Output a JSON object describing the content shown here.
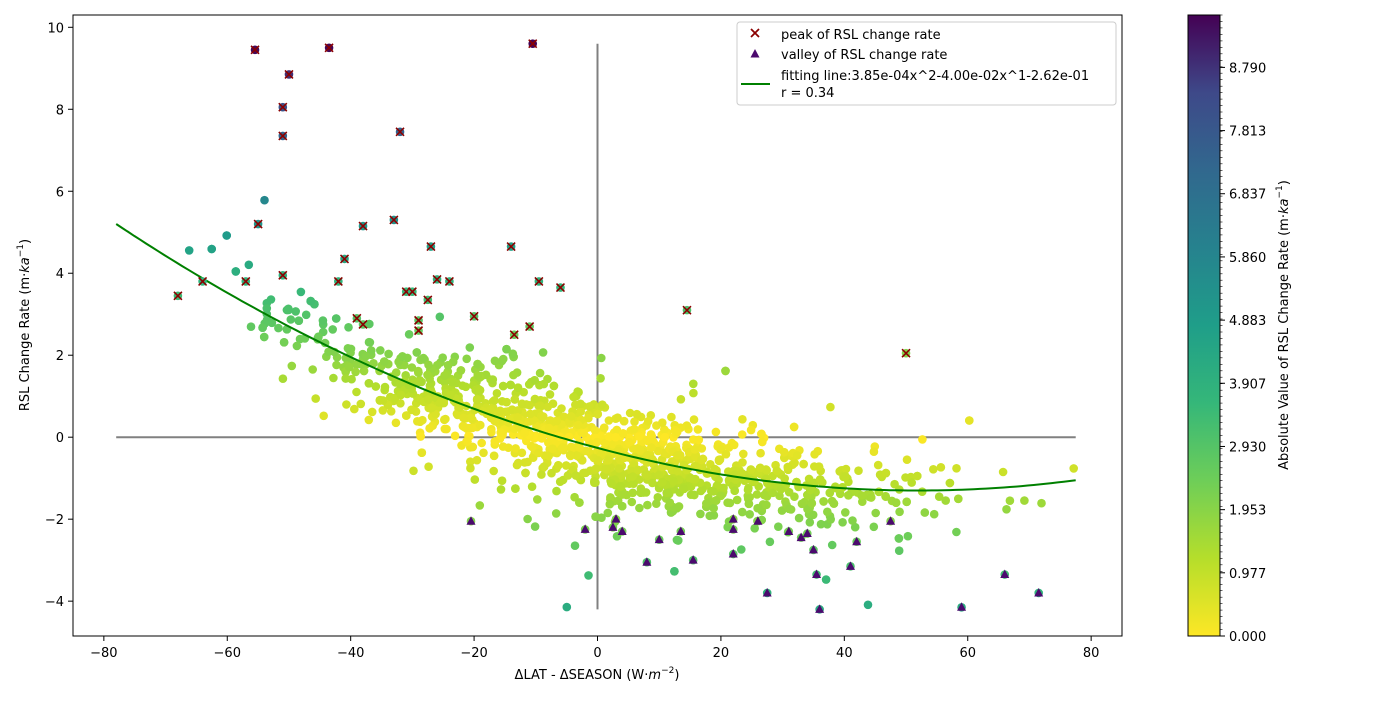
{
  "chart_data": {
    "type": "scatter",
    "title": "",
    "xlabel": "ΔLAT - ΔSEASON  (W·m⁻²)",
    "xlabel_main": "ΔLAT - ΔSEASON  (W·",
    "xlabel_unit": "m",
    "xlabel_exp": "−2",
    "xlabel_close": ")",
    "ylabel_main": "RSL Change Rate (m·",
    "ylabel_unit": "ka",
    "ylabel_exp": "−1",
    "ylabel_close": ")",
    "xlim": [
      -85,
      85
    ],
    "ylim": [
      -4.85,
      10.3
    ],
    "xticks": [
      -80,
      -60,
      -40,
      -20,
      0,
      20,
      40,
      60,
      80
    ],
    "xtick_labels": [
      "−80",
      "−60",
      "−40",
      "−20",
      "0",
      "20",
      "40",
      "60",
      "80"
    ],
    "yticks": [
      -4,
      -2,
      0,
      2,
      4,
      6,
      8,
      10
    ],
    "ytick_labels": [
      "−4",
      "−2",
      "0",
      "2",
      "4",
      "6",
      "8",
      "10"
    ],
    "grid": false,
    "legend_position": "top-right",
    "reference_lines": {
      "horizontal": {
        "y": 0,
        "x_range": [
          -78,
          77.5
        ],
        "color": "#808080"
      },
      "vertical": {
        "x": 0,
        "y_range": [
          -4.2,
          9.6
        ],
        "color": "#808080"
      }
    },
    "fit": {
      "label": "fitting line:3.85e-04x^2-4.00e-02x^1-2.62e-01",
      "r_label": "r = 0.34",
      "coefficients": [
        0.000385,
        -0.04,
        -0.262
      ],
      "x_range": [
        -78,
        77.5
      ],
      "color": "#008000"
    },
    "colormap": "viridis_r",
    "colorbar": {
      "label_main": "Absolute Value of RSL Change Rate (m·",
      "label_unit": "ka",
      "label_exp": "−1",
      "label_close": ")",
      "vmin": 0,
      "vmax": 9.6,
      "ticks": [
        0.0,
        0.977,
        1.953,
        2.93,
        3.907,
        4.883,
        5.86,
        6.837,
        7.813,
        8.79
      ],
      "tick_labels": [
        "0.000",
        "0.977",
        "1.953",
        "2.930",
        "3.907",
        "4.883",
        "5.860",
        "6.837",
        "7.813",
        "8.790"
      ]
    },
    "series": [
      {
        "name": "peak of RSL change rate",
        "marker": "x",
        "color": "#8b0000",
        "points": [
          [
            -55.5,
            9.45
          ],
          [
            -43.5,
            9.5
          ],
          [
            -10.5,
            9.6
          ],
          [
            -50,
            8.85
          ],
          [
            -51,
            8.05
          ],
          [
            -51,
            7.35
          ],
          [
            -32,
            7.45
          ],
          [
            -55,
            5.2
          ],
          [
            -38,
            5.15
          ],
          [
            -33,
            5.3
          ],
          [
            -14,
            4.65
          ],
          [
            -27,
            4.65
          ],
          [
            -41,
            4.35
          ],
          [
            -51,
            3.95
          ],
          [
            -42,
            3.8
          ],
          [
            -57,
            3.8
          ],
          [
            -64,
            3.8
          ],
          [
            -68,
            3.45
          ],
          [
            -31,
            3.55
          ],
          [
            -30,
            3.55
          ],
          [
            -26,
            3.85
          ],
          [
            -24,
            3.8
          ],
          [
            -9.5,
            3.8
          ],
          [
            -6,
            3.65
          ],
          [
            -27.5,
            3.35
          ],
          [
            -39,
            2.9
          ],
          [
            -38,
            2.75
          ],
          [
            -29,
            2.85
          ],
          [
            -29,
            2.6
          ],
          [
            -20,
            2.95
          ],
          [
            -11,
            2.7
          ],
          [
            -13.5,
            2.5
          ],
          [
            14.5,
            3.1
          ],
          [
            50,
            2.05
          ]
        ]
      },
      {
        "name": "valley of RSL change rate",
        "marker": "triangle",
        "color": "#4b0a6e",
        "points": [
          [
            -20.5,
            -2.05
          ],
          [
            -2,
            -2.25
          ],
          [
            3,
            -2.0
          ],
          [
            2.5,
            -2.2
          ],
          [
            4,
            -2.3
          ],
          [
            10,
            -2.5
          ],
          [
            8,
            -3.05
          ],
          [
            13.5,
            -2.3
          ],
          [
            15.5,
            -3.0
          ],
          [
            22,
            -2.0
          ],
          [
            22,
            -2.25
          ],
          [
            22,
            -2.85
          ],
          [
            26,
            -2.05
          ],
          [
            27.5,
            -3.8
          ],
          [
            31,
            -2.3
          ],
          [
            33,
            -2.45
          ],
          [
            34,
            -2.35
          ],
          [
            35,
            -2.75
          ],
          [
            35.5,
            -3.35
          ],
          [
            36,
            -4.2
          ],
          [
            41,
            -3.15
          ],
          [
            42,
            -2.55
          ],
          [
            47.5,
            -2.05
          ],
          [
            59,
            -4.15
          ],
          [
            66,
            -3.35
          ],
          [
            71.5,
            -3.8
          ]
        ]
      }
    ]
  }
}
